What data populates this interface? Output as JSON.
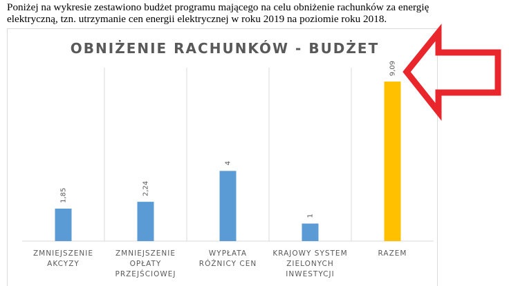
{
  "intro": {
    "line1": "Poniżej na wykresie zestawiono budżet programu mającego na celu obniżenie rachunków za energię",
    "line2": "elektryczną, tzn. utrzymanie cen energii elektrycznej w roku 2019 na poziomie roku 2018."
  },
  "chart_data": {
    "type": "bar",
    "title": "OBNIŻENIE RACHUNKÓW - BUDŻET",
    "categories": [
      [
        "ZMNIEJSZENIE",
        "AKCYZY"
      ],
      [
        "ZMNIEJSZENIE",
        "OPŁATY",
        "PRZEJŚCIOWEJ"
      ],
      [
        "WYPŁATA",
        "RÓŻNICY CEN"
      ],
      [
        "KRAJOWY SYSTEM",
        "ZIELONYCH",
        "INWESTYCJI"
      ],
      [
        "RAZEM"
      ]
    ],
    "values": [
      1.85,
      2.24,
      4,
      1,
      9.09
    ],
    "value_labels": [
      "1,85",
      "2,24",
      "4",
      "1",
      "9,09"
    ],
    "colors": [
      "#5b9bd5",
      "#5b9bd5",
      "#5b9bd5",
      "#5b9bd5",
      "#ffc000"
    ],
    "ylim": [
      0,
      10
    ],
    "grid": false,
    "legend": "none"
  },
  "annotation": {
    "arrow_color": "#e8262b",
    "arrow_shape": "red-outlined-arrow-pointing-left"
  }
}
